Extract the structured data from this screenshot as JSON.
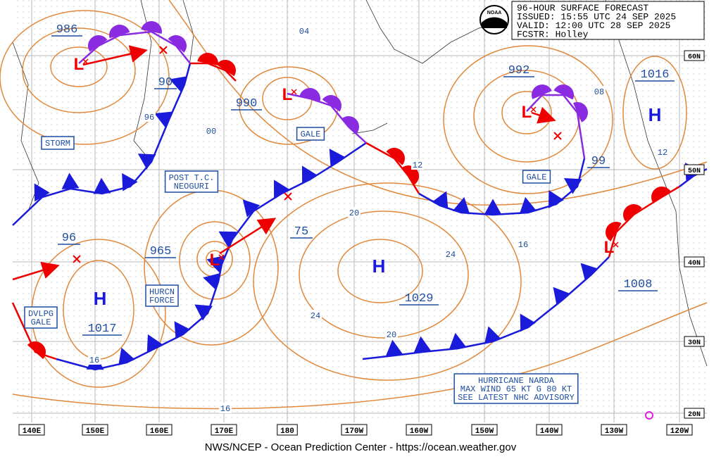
{
  "header": {
    "lines": [
      "96-HOUR SURFACE FORECAST",
      "ISSUED: 15:55 UTC 24 SEP 2025",
      "VALID: 12:00 UTC 28 SEP 2025",
      "FCSTR: Holley"
    ]
  },
  "pressures": [
    "986",
    "90",
    "990",
    "96",
    "965",
    "75",
    "1017",
    "1029",
    "992",
    "1016",
    "99",
    "1008"
  ],
  "isobar_labels": [
    "04",
    "96",
    "00",
    "12",
    "20",
    "24",
    "16",
    "24",
    "20",
    "16",
    "16",
    "08",
    "12"
  ],
  "boxes": [
    {
      "lines": [
        "STORM"
      ]
    },
    {
      "lines": [
        "POST T.C.",
        "NEOGURI"
      ]
    },
    {
      "lines": [
        "GALE"
      ]
    },
    {
      "lines": [
        "GALE"
      ]
    },
    {
      "lines": [
        "HURCN",
        "FORCE"
      ]
    },
    {
      "lines": [
        "DVLPG",
        "GALE"
      ]
    },
    {
      "lines": [
        "HURRICANE NARDA",
        "MAX WIND 65 KT G 80 KT",
        "SEE LATEST NHC ADVISORY"
      ]
    }
  ],
  "centers": [
    "H",
    "H",
    "H",
    "L",
    "L",
    "L",
    "L",
    "L"
  ],
  "latitudes": [
    "60N",
    "50N",
    "40N",
    "30N",
    "20N"
  ],
  "longitudes": [
    "140E",
    "150E",
    "160E",
    "170E",
    "180",
    "170W",
    "160W",
    "150W",
    "140W",
    "130W",
    "120W"
  ],
  "footer": "NWS/NCEP - Ocean Prediction Center - https://ocean.weather.gov"
}
